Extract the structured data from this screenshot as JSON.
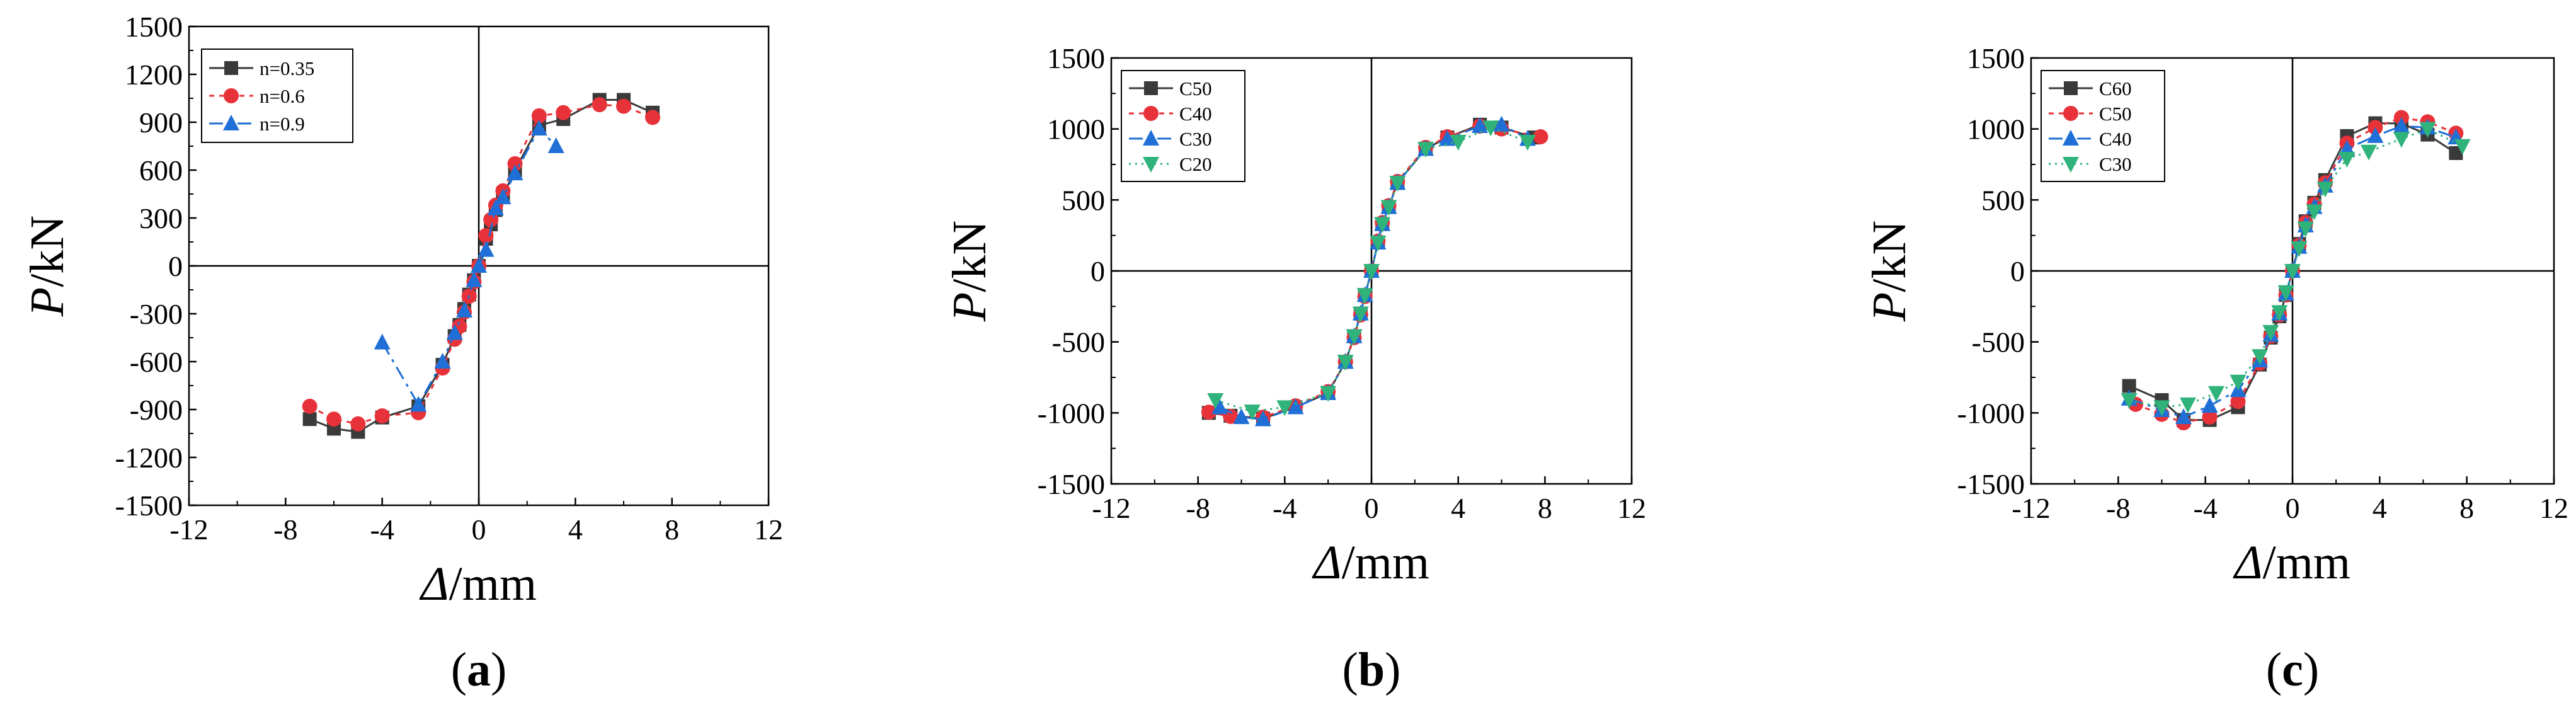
{
  "colors": {
    "black_series": "#3a3a3a",
    "red_series": "#e8323a",
    "blue_series": "#1f6fd6",
    "green_series": "#2fb37a",
    "axis": "#000000"
  },
  "chart_data": [
    {
      "type": "line",
      "panel_label_parts": [
        "(",
        "a",
        ")"
      ],
      "xlabel_parts": [
        "Δ",
        "/mm"
      ],
      "ylabel_parts": [
        "P",
        "/kN"
      ],
      "xlim": [
        -12,
        12
      ],
      "ylim": [
        -1500,
        1500
      ],
      "xticks": [
        -12,
        -8,
        -4,
        0,
        4,
        8,
        12
      ],
      "yticks": [
        -1500,
        -1200,
        -900,
        -600,
        -300,
        0,
        300,
        600,
        900,
        1200,
        1500
      ],
      "legend_position": "top-left",
      "series": [
        {
          "name": "n=0.35",
          "color": "#3a3a3a",
          "marker": "square",
          "dash": "solid",
          "x": [
            -7.0,
            -6.0,
            -5.0,
            -4.0,
            -2.5,
            -1.5,
            -1.0,
            -0.8,
            -0.6,
            -0.4,
            -0.2,
            0,
            0.3,
            0.5,
            0.7,
            1.0,
            1.5,
            2.5,
            3.5,
            5.0,
            6.0,
            7.2
          ],
          "y": [
            -960,
            -1020,
            -1040,
            -950,
            -880,
            -620,
            -440,
            -370,
            -270,
            -180,
            -90,
            0,
            170,
            260,
            350,
            440,
            600,
            880,
            920,
            1040,
            1040,
            960
          ]
        },
        {
          "name": "n=0.6",
          "color": "#e8323a",
          "marker": "circle",
          "dash": "dot",
          "x": [
            -7.0,
            -6.0,
            -5.0,
            -4.0,
            -2.5,
            -1.5,
            -1.0,
            -0.8,
            -0.6,
            -0.4,
            -0.2,
            0,
            0.3,
            0.5,
            0.7,
            1.0,
            1.5,
            2.5,
            3.5,
            5.0,
            6.0,
            7.2
          ],
          "y": [
            -880,
            -960,
            -990,
            -940,
            -920,
            -640,
            -460,
            -380,
            -290,
            -190,
            -100,
            0,
            190,
            290,
            380,
            470,
            640,
            940,
            960,
            1010,
            1000,
            930
          ]
        },
        {
          "name": "n=0.9",
          "color": "#1f6fd6",
          "marker": "triangle",
          "dash": "dashdot",
          "x": [
            -4.0,
            -2.5,
            -1.5,
            -1.0,
            -0.6,
            -0.2,
            0,
            0.3,
            0.7,
            1.0,
            1.5,
            2.5,
            3.2
          ],
          "y": [
            -480,
            -870,
            -600,
            -420,
            -280,
            -90,
            0,
            100,
            360,
            430,
            580,
            860,
            750
          ]
        }
      ]
    },
    {
      "type": "line",
      "panel_label_parts": [
        "(",
        "b",
        ")"
      ],
      "xlabel_parts": [
        "Δ",
        "/mm"
      ],
      "ylabel_parts": [
        "P",
        "/kN"
      ],
      "xlim": [
        -12,
        12
      ],
      "ylim": [
        -1500,
        1500
      ],
      "xticks": [
        -12,
        -8,
        -4,
        0,
        4,
        8,
        12
      ],
      "yticks": [
        -1500,
        -1000,
        -500,
        0,
        500,
        1000,
        1500
      ],
      "legend_position": "top-left",
      "series": [
        {
          "name": "C50",
          "color": "#3a3a3a",
          "marker": "square",
          "dash": "solid",
          "x": [
            -7.5,
            -6.5,
            -5.0,
            -3.5,
            -2.0,
            -1.2,
            -0.8,
            -0.5,
            -0.3,
            0,
            0.3,
            0.5,
            0.8,
            1.2,
            2.5,
            3.5,
            5.0,
            6.0,
            7.5
          ],
          "y": [
            -1000,
            -1020,
            -1040,
            -960,
            -860,
            -640,
            -460,
            -300,
            -170,
            0,
            200,
            330,
            450,
            620,
            860,
            940,
            1030,
            1010,
            940
          ]
        },
        {
          "name": "C40",
          "color": "#e8323a",
          "marker": "circle",
          "dash": "dot",
          "x": [
            -7.5,
            -6.5,
            -5.0,
            -3.5,
            -2.0,
            -1.2,
            -0.8,
            -0.5,
            -0.3,
            0,
            0.3,
            0.5,
            0.8,
            1.2,
            2.5,
            3.5,
            5.0,
            6.0,
            7.8
          ],
          "y": [
            -995,
            -1025,
            -1030,
            -950,
            -850,
            -640,
            -470,
            -310,
            -180,
            0,
            210,
            340,
            460,
            630,
            870,
            945,
            1020,
            1000,
            945
          ]
        },
        {
          "name": "C30",
          "color": "#1f6fd6",
          "marker": "triangle",
          "dash": "dashdot",
          "x": [
            -7.0,
            -6.0,
            -5.0,
            -3.5,
            -2.0,
            -1.2,
            -0.8,
            -0.5,
            -0.3,
            0,
            0.3,
            0.5,
            0.8,
            1.2,
            2.5,
            3.5,
            5.0,
            6.0,
            7.2
          ],
          "y": [
            -960,
            -1030,
            -1045,
            -960,
            -860,
            -640,
            -460,
            -300,
            -170,
            0,
            200,
            330,
            450,
            620,
            860,
            930,
            1020,
            1030,
            930
          ]
        },
        {
          "name": "C20",
          "color": "#2fb37a",
          "marker": "triangle-down",
          "dash": "dotted",
          "x": [
            -7.2,
            -5.5,
            -4.0,
            -2.0,
            -1.2,
            -0.8,
            -0.5,
            -0.3,
            0,
            0.3,
            0.5,
            0.8,
            1.2,
            2.5,
            4.0,
            5.5,
            7.2
          ],
          "y": [
            -910,
            -990,
            -960,
            -860,
            -640,
            -460,
            -300,
            -170,
            0,
            200,
            330,
            450,
            620,
            860,
            910,
            1010,
            910
          ]
        }
      ]
    },
    {
      "type": "line",
      "panel_label_parts": [
        "(",
        "c",
        ")"
      ],
      "xlabel_parts": [
        "Δ",
        "/mm"
      ],
      "ylabel_parts": [
        "P",
        "/kN"
      ],
      "xlim": [
        -12,
        12
      ],
      "ylim": [
        -1500,
        1500
      ],
      "xticks": [
        -12,
        -8,
        -4,
        0,
        4,
        8,
        12
      ],
      "yticks": [
        -1500,
        -1000,
        -500,
        0,
        500,
        1000,
        1500
      ],
      "legend_position": "top-left",
      "series": [
        {
          "name": "C60",
          "color": "#3a3a3a",
          "marker": "square",
          "dash": "solid",
          "x": [
            -7.5,
            -6.0,
            -5.0,
            -3.8,
            -2.5,
            -1.5,
            -1.0,
            -0.6,
            -0.3,
            0,
            0.3,
            0.6,
            1.0,
            1.5,
            2.5,
            3.8,
            5.0,
            6.2,
            7.5
          ],
          "y": [
            -810,
            -910,
            -1050,
            -1050,
            -960,
            -660,
            -470,
            -320,
            -170,
            0,
            190,
            350,
            480,
            640,
            950,
            1040,
            1040,
            960,
            830
          ]
        },
        {
          "name": "C50",
          "color": "#e8323a",
          "marker": "circle",
          "dash": "dot",
          "x": [
            -7.2,
            -6.0,
            -5.0,
            -3.8,
            -2.5,
            -1.5,
            -1.0,
            -0.6,
            -0.3,
            0,
            0.3,
            0.6,
            1.0,
            1.5,
            2.5,
            3.8,
            5.0,
            6.2,
            7.5
          ],
          "y": [
            -940,
            -1010,
            -1070,
            -1030,
            -920,
            -650,
            -460,
            -310,
            -170,
            0,
            180,
            340,
            470,
            620,
            900,
            1010,
            1080,
            1050,
            970
          ]
        },
        {
          "name": "C40",
          "color": "#1f6fd6",
          "marker": "triangle",
          "dash": "dashdot",
          "x": [
            -7.5,
            -6.0,
            -5.0,
            -3.8,
            -2.5,
            -1.5,
            -1.0,
            -0.6,
            -0.3,
            0,
            0.3,
            0.6,
            1.0,
            1.5,
            2.5,
            3.8,
            5.0,
            6.2,
            7.5
          ],
          "y": [
            -900,
            -980,
            -1030,
            -950,
            -840,
            -630,
            -450,
            -300,
            -160,
            0,
            170,
            320,
            450,
            600,
            860,
            950,
            1020,
            1010,
            940
          ]
        },
        {
          "name": "C30",
          "color": "#2fb37a",
          "marker": "triangle-down",
          "dash": "dotted",
          "x": [
            -7.5,
            -6.0,
            -4.8,
            -3.5,
            -2.5,
            -1.5,
            -1.0,
            -0.6,
            -0.3,
            0,
            0.3,
            0.6,
            1.0,
            1.5,
            2.5,
            3.5,
            5.0,
            6.2,
            7.8
          ],
          "y": [
            -910,
            -960,
            -940,
            -860,
            -780,
            -600,
            -430,
            -290,
            -150,
            0,
            160,
            300,
            420,
            580,
            790,
            840,
            930,
            1000,
            880
          ]
        }
      ]
    }
  ]
}
